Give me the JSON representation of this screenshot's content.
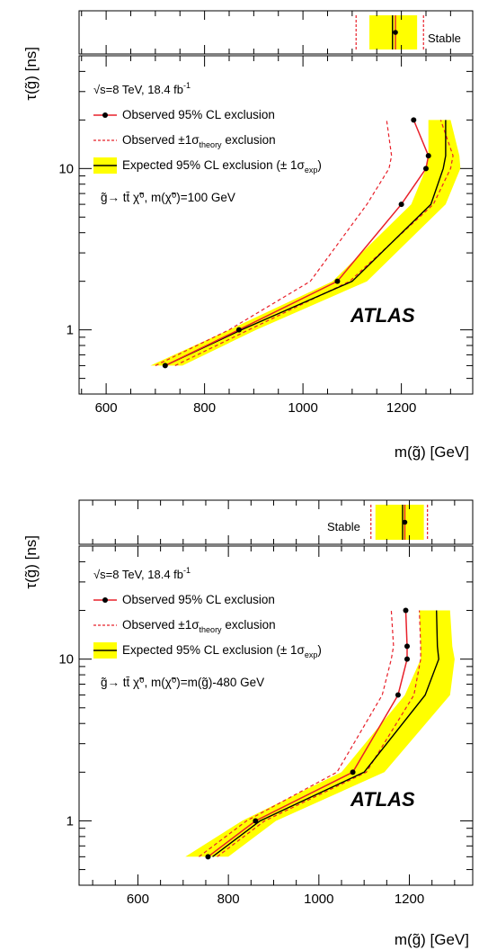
{
  "chart_data": [
    {
      "type": "line",
      "y_scale": "log",
      "xlabel": "m(g̃) [GeV]",
      "ylabel": "τ(g̃) [ns]",
      "xlim": [
        545,
        1345
      ],
      "ylim": [
        0.4,
        50
      ],
      "x_ticks": [
        600,
        800,
        1000,
        1200
      ],
      "x_tick_labels": [
        "600",
        "800",
        "1000",
        "1200"
      ],
      "y_ticks": [
        1,
        10
      ],
      "y_tick_labels": [
        "1",
        "10"
      ],
      "stable_label": "Stable",
      "stable": {
        "observed": 1188,
        "expected": 1182,
        "band": [
          1135,
          1232
        ],
        "theory": [
          1108,
          1245
        ]
      },
      "legend": {
        "energy_prefix": "s=8 TeV, 18.4 fb",
        "energy_sup": "-1",
        "observed": "Observed 95% CL exclusion",
        "theory_pre": "Observed ±1",
        "theory_sub": "theory",
        "theory_post": " exclusion",
        "expected_pre": "Expected 95% CL exclusion (± 1",
        "expected_sub": "exp",
        "expected_post": ")",
        "process": "g̃→ tt̄ χ̃⁰, m(χ̃⁰)=100 GeV"
      },
      "atlas_label": "ATLAS",
      "observed": {
        "x": [
          720,
          870,
          1070,
          1200,
          1250,
          1255,
          1225
        ],
        "y": [
          0.6,
          1.0,
          2.0,
          6.0,
          10.0,
          12.0,
          20.0
        ]
      },
      "observed_theory_up": {
        "x": [
          700,
          850,
          1015,
          1130,
          1175,
          1180,
          1170
        ],
        "y": [
          0.6,
          1.0,
          2.0,
          6.0,
          10.0,
          12.0,
          20.0
        ]
      },
      "observed_theory_down": {
        "x": [
          740,
          890,
          1095,
          1265,
          1300,
          1305,
          1280
        ],
        "y": [
          0.6,
          1.0,
          2.0,
          6.0,
          10.0,
          12.0,
          20.0
        ]
      },
      "expected": {
        "x": [
          720,
          875,
          1100,
          1260,
          1285,
          1290,
          1290
        ],
        "y": [
          0.6,
          1.0,
          2.0,
          6.0,
          10.0,
          12.0,
          20.0
        ]
      },
      "expected_band_low": {
        "x": [
          690,
          850,
          1060,
          1220,
          1250,
          1255,
          1255
        ],
        "y": [
          0.6,
          1.0,
          2.0,
          6.0,
          10.0,
          12.0,
          20.0
        ]
      },
      "expected_band_high": {
        "x": [
          755,
          905,
          1130,
          1290,
          1320,
          1318,
          1300
        ],
        "y": [
          0.6,
          1.0,
          2.0,
          6.0,
          10.0,
          12.0,
          20.0
        ]
      }
    },
    {
      "type": "line",
      "y_scale": "log",
      "xlabel": "m(g̃) [GeV]",
      "ylabel": "τ(g̃) [ns]",
      "xlim": [
        470,
        1340
      ],
      "ylim": [
        0.4,
        50
      ],
      "x_ticks": [
        600,
        800,
        1000,
        1200
      ],
      "x_tick_labels": [
        "600",
        "800",
        "1000",
        "1200"
      ],
      "y_ticks": [
        1,
        10
      ],
      "y_tick_labels": [
        "1",
        "10"
      ],
      "stable_label": "Stable",
      "stable": {
        "observed": 1190,
        "expected": 1185,
        "band": [
          1125,
          1232
        ],
        "theory": [
          1115,
          1240
        ]
      },
      "legend": {
        "energy_prefix": "s=8 TeV, 18.4 fb",
        "energy_sup": "-1",
        "observed": "Observed 95% CL exclusion",
        "theory_pre": "Observed ±1",
        "theory_sub": "theory",
        "theory_post": " exclusion",
        "expected_pre": "Expected 95% CL exclusion (± 1",
        "expected_sub": "exp",
        "expected_post": ")",
        "process": "g̃→ tt̄ χ̃⁰, m(χ̃⁰)=m(g̃)-480 GeV"
      },
      "atlas_label": "ATLAS",
      "observed": {
        "x": [
          755,
          860,
          1075,
          1175,
          1195,
          1195,
          1192
        ],
        "y": [
          0.6,
          1.0,
          2.0,
          6.0,
          10.0,
          12.0,
          20.0
        ]
      },
      "observed_theory_up": {
        "x": [
          735,
          840,
          1040,
          1140,
          1160,
          1165,
          1160
        ],
        "y": [
          0.6,
          1.0,
          2.0,
          6.0,
          10.0,
          12.0,
          20.0
        ]
      },
      "observed_theory_down": {
        "x": [
          775,
          880,
          1105,
          1210,
          1225,
          1225,
          1222
        ],
        "y": [
          0.6,
          1.0,
          2.0,
          6.0,
          10.0,
          12.0,
          20.0
        ]
      },
      "expected": {
        "x": [
          765,
          870,
          1100,
          1235,
          1265,
          1262,
          1260
        ],
        "y": [
          0.6,
          1.0,
          2.0,
          6.0,
          10.0,
          12.0,
          20.0
        ]
      },
      "expected_band_low": {
        "x": [
          705,
          830,
          1050,
          1190,
          1225,
          1225,
          1222
        ],
        "y": [
          0.6,
          1.0,
          2.0,
          6.0,
          10.0,
          12.0,
          20.0
        ]
      },
      "expected_band_high": {
        "x": [
          800,
          905,
          1145,
          1290,
          1300,
          1295,
          1290
        ],
        "y": [
          0.6,
          1.0,
          2.0,
          6.0,
          10.0,
          12.0,
          20.0
        ]
      }
    }
  ]
}
